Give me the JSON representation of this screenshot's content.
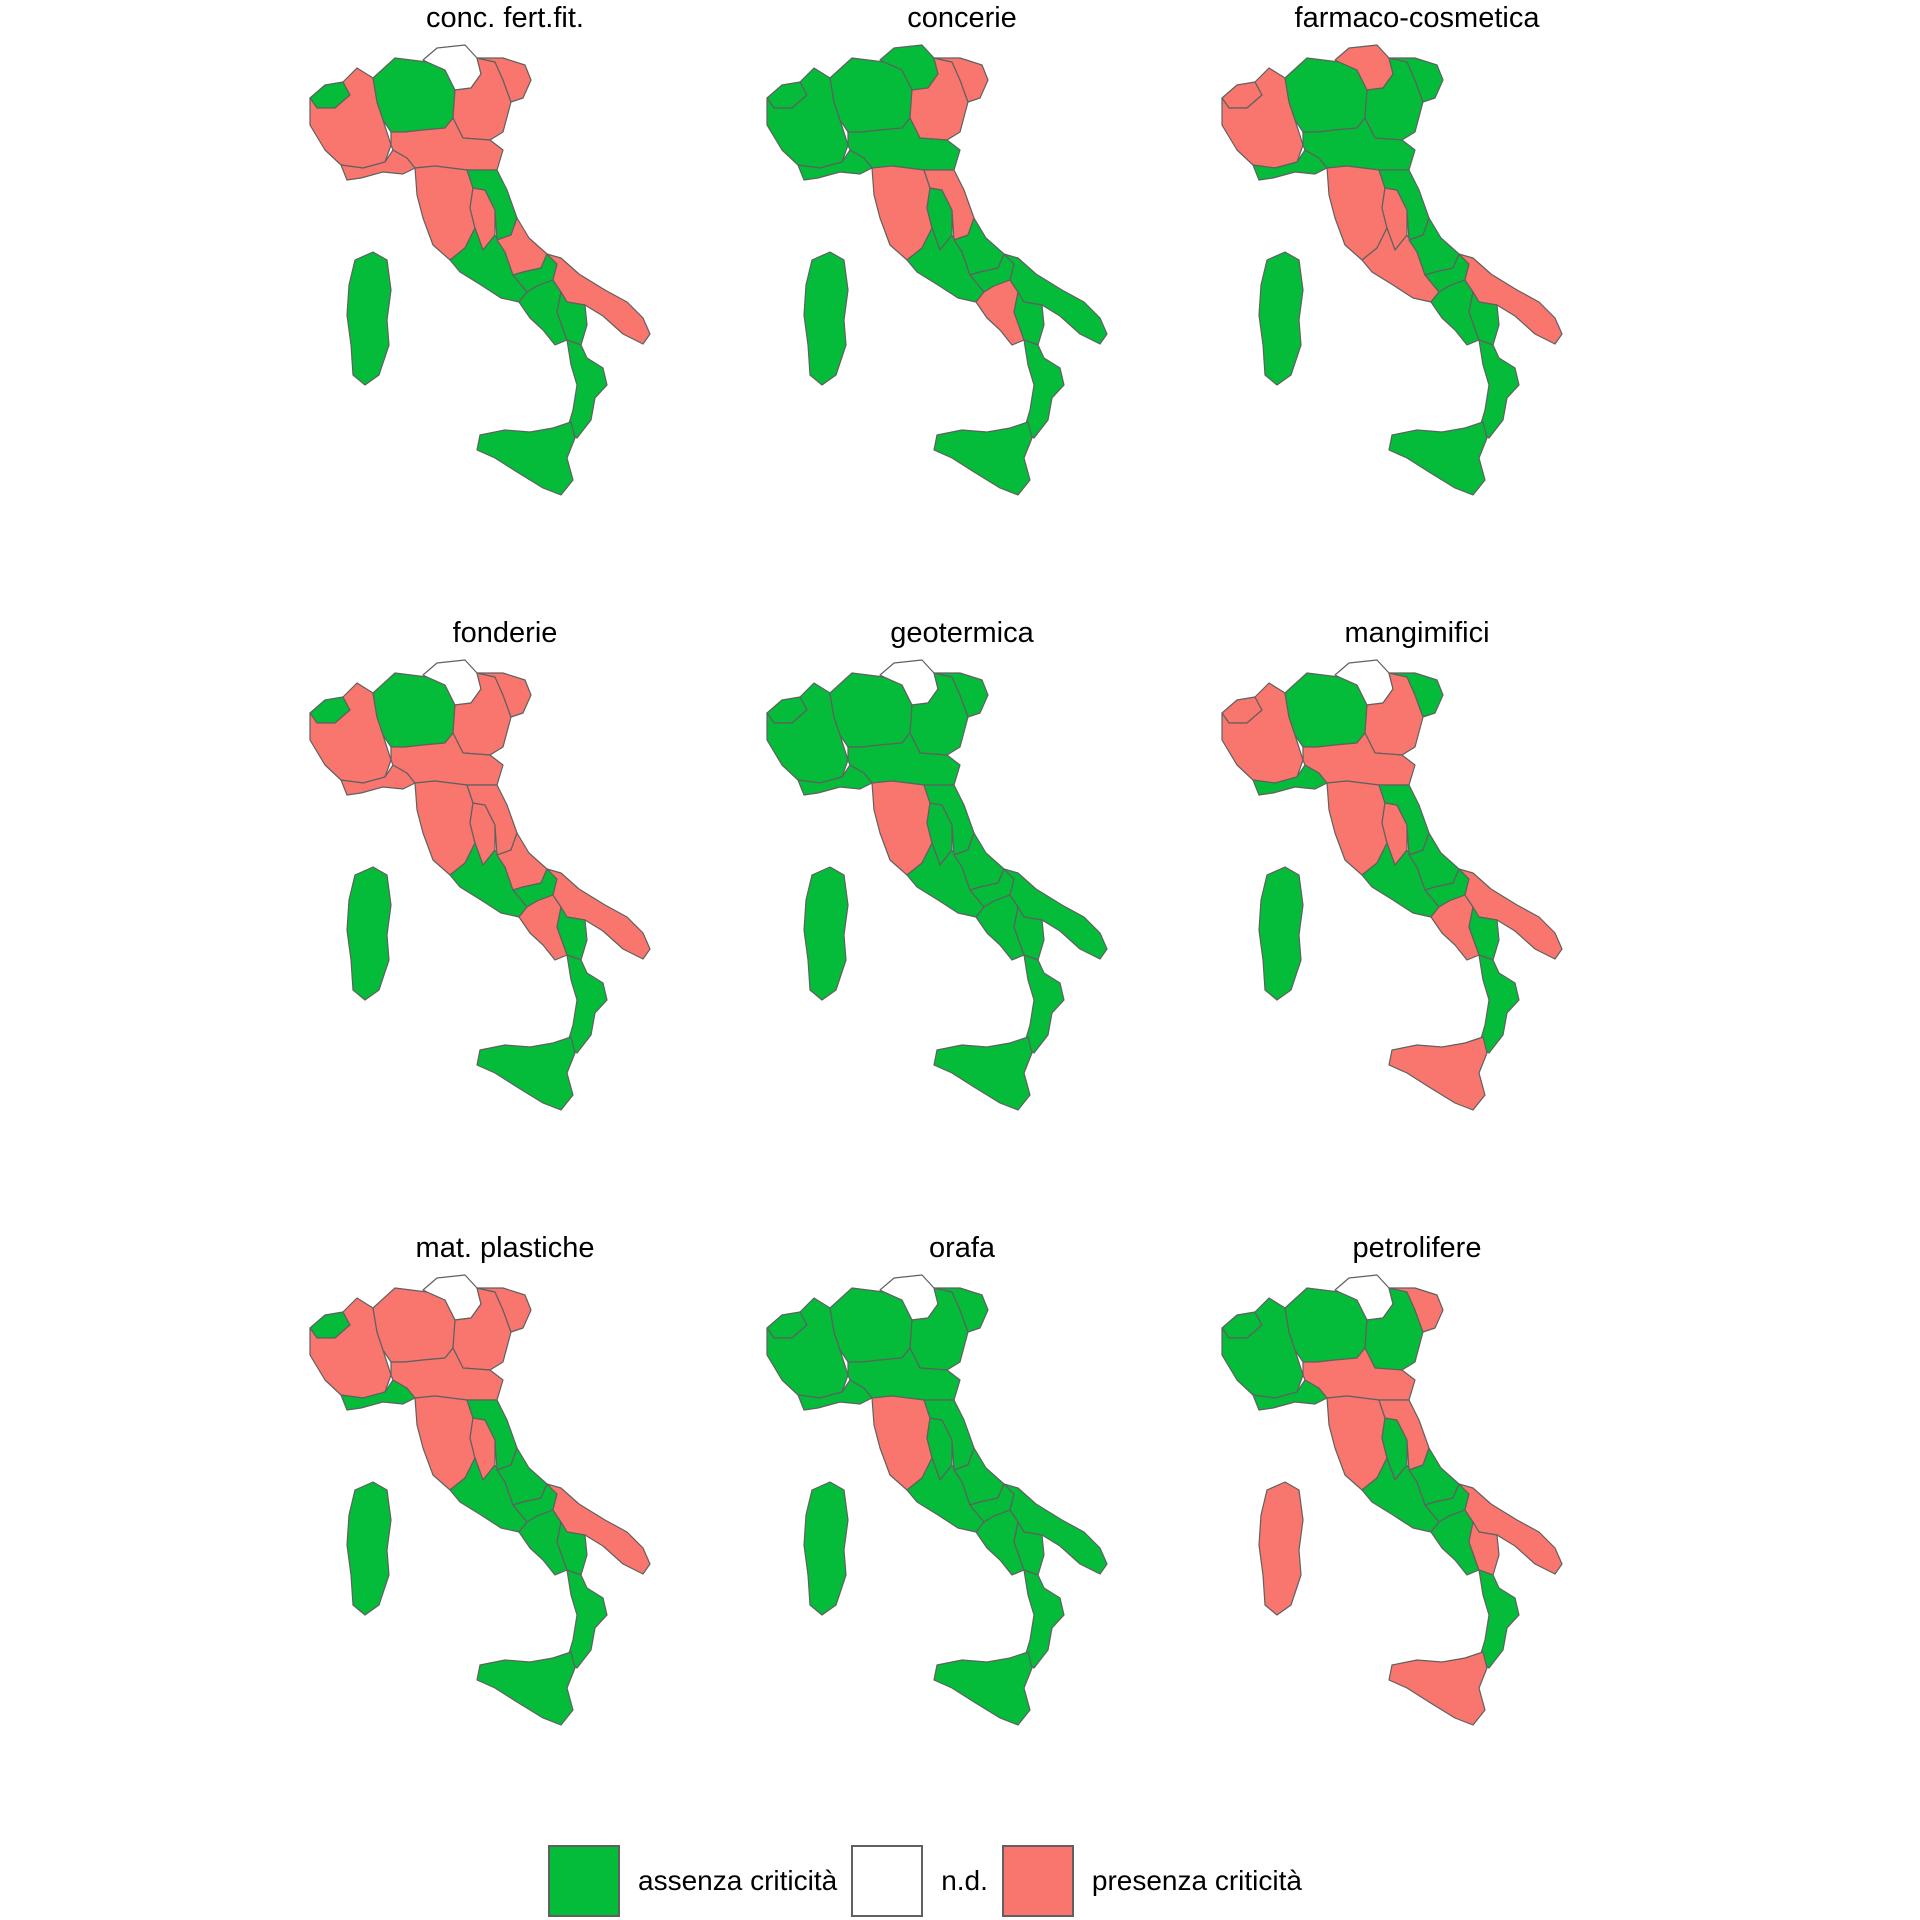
{
  "colors": {
    "assenza": "#04bb3a",
    "nd": "#ffffff",
    "presenza": "#f8766d",
    "border": "#606060"
  },
  "legend": [
    {
      "key": "assenza",
      "label": "assenza criticità"
    },
    {
      "key": "nd",
      "label": "n.d."
    },
    {
      "key": "presenza",
      "label": "presenza criticità"
    }
  ],
  "panels": [
    {
      "title": "conc. fert.fit.",
      "regions": {
        "Valle d'Aosta": "assenza",
        "Piemonte": "presenza",
        "Lombardia": "assenza",
        "Trentino-Alto Adige": "nd",
        "Veneto": "presenza",
        "Friuli-Venezia Giulia": "presenza",
        "Liguria": "presenza",
        "Emilia-Romagna": "presenza",
        "Toscana": "presenza",
        "Umbria": "presenza",
        "Marche": "assenza",
        "Lazio": "assenza",
        "Abruzzo": "presenza",
        "Molise": "assenza",
        "Campania": "assenza",
        "Puglia": "presenza",
        "Basilicata": "assenza",
        "Calabria": "assenza",
        "Sicilia": "assenza",
        "Sardegna": "assenza"
      }
    },
    {
      "title": "concerie",
      "regions": {
        "Valle d'Aosta": "assenza",
        "Piemonte": "assenza",
        "Lombardia": "assenza",
        "Trentino-Alto Adige": "assenza",
        "Veneto": "presenza",
        "Friuli-Venezia Giulia": "presenza",
        "Liguria": "assenza",
        "Emilia-Romagna": "assenza",
        "Toscana": "presenza",
        "Umbria": "assenza",
        "Marche": "presenza",
        "Lazio": "assenza",
        "Abruzzo": "assenza",
        "Molise": "assenza",
        "Campania": "presenza",
        "Puglia": "assenza",
        "Basilicata": "assenza",
        "Calabria": "assenza",
        "Sicilia": "assenza",
        "Sardegna": "assenza"
      }
    },
    {
      "title": "farmaco-cosmetica",
      "regions": {
        "Valle d'Aosta": "presenza",
        "Piemonte": "presenza",
        "Lombardia": "assenza",
        "Trentino-Alto Adige": "presenza",
        "Veneto": "assenza",
        "Friuli-Venezia Giulia": "assenza",
        "Liguria": "assenza",
        "Emilia-Romagna": "assenza",
        "Toscana": "presenza",
        "Umbria": "presenza",
        "Marche": "assenza",
        "Lazio": "presenza",
        "Abruzzo": "assenza",
        "Molise": "assenza",
        "Campania": "assenza",
        "Puglia": "presenza",
        "Basilicata": "assenza",
        "Calabria": "assenza",
        "Sicilia": "assenza",
        "Sardegna": "assenza"
      }
    },
    {
      "title": "fonderie",
      "regions": {
        "Valle d'Aosta": "assenza",
        "Piemonte": "presenza",
        "Lombardia": "assenza",
        "Trentino-Alto Adige": "nd",
        "Veneto": "presenza",
        "Friuli-Venezia Giulia": "presenza",
        "Liguria": "presenza",
        "Emilia-Romagna": "presenza",
        "Toscana": "presenza",
        "Umbria": "presenza",
        "Marche": "presenza",
        "Lazio": "assenza",
        "Abruzzo": "presenza",
        "Molise": "assenza",
        "Campania": "presenza",
        "Puglia": "presenza",
        "Basilicata": "assenza",
        "Calabria": "assenza",
        "Sicilia": "assenza",
        "Sardegna": "assenza"
      }
    },
    {
      "title": "geotermica",
      "regions": {
        "Valle d'Aosta": "assenza",
        "Piemonte": "assenza",
        "Lombardia": "assenza",
        "Trentino-Alto Adige": "nd",
        "Veneto": "assenza",
        "Friuli-Venezia Giulia": "assenza",
        "Liguria": "assenza",
        "Emilia-Romagna": "assenza",
        "Toscana": "presenza",
        "Umbria": "assenza",
        "Marche": "assenza",
        "Lazio": "assenza",
        "Abruzzo": "assenza",
        "Molise": "assenza",
        "Campania": "assenza",
        "Puglia": "assenza",
        "Basilicata": "assenza",
        "Calabria": "assenza",
        "Sicilia": "assenza",
        "Sardegna": "assenza"
      }
    },
    {
      "title": "mangimifici",
      "regions": {
        "Valle d'Aosta": "presenza",
        "Piemonte": "presenza",
        "Lombardia": "assenza",
        "Trentino-Alto Adige": "nd",
        "Veneto": "presenza",
        "Friuli-Venezia Giulia": "assenza",
        "Liguria": "assenza",
        "Emilia-Romagna": "presenza",
        "Toscana": "presenza",
        "Umbria": "presenza",
        "Marche": "assenza",
        "Lazio": "assenza",
        "Abruzzo": "assenza",
        "Molise": "assenza",
        "Campania": "presenza",
        "Puglia": "presenza",
        "Basilicata": "assenza",
        "Calabria": "assenza",
        "Sicilia": "presenza",
        "Sardegna": "assenza"
      }
    },
    {
      "title": "mat. plastiche",
      "regions": {
        "Valle d'Aosta": "assenza",
        "Piemonte": "presenza",
        "Lombardia": "presenza",
        "Trentino-Alto Adige": "nd",
        "Veneto": "presenza",
        "Friuli-Venezia Giulia": "presenza",
        "Liguria": "assenza",
        "Emilia-Romagna": "presenza",
        "Toscana": "presenza",
        "Umbria": "presenza",
        "Marche": "assenza",
        "Lazio": "assenza",
        "Abruzzo": "assenza",
        "Molise": "assenza",
        "Campania": "assenza",
        "Puglia": "presenza",
        "Basilicata": "assenza",
        "Calabria": "assenza",
        "Sicilia": "assenza",
        "Sardegna": "assenza"
      }
    },
    {
      "title": "orafa",
      "regions": {
        "Valle d'Aosta": "assenza",
        "Piemonte": "assenza",
        "Lombardia": "assenza",
        "Trentino-Alto Adige": "nd",
        "Veneto": "assenza",
        "Friuli-Venezia Giulia": "assenza",
        "Liguria": "assenza",
        "Emilia-Romagna": "assenza",
        "Toscana": "presenza",
        "Umbria": "assenza",
        "Marche": "assenza",
        "Lazio": "assenza",
        "Abruzzo": "assenza",
        "Molise": "assenza",
        "Campania": "assenza",
        "Puglia": "assenza",
        "Basilicata": "assenza",
        "Calabria": "assenza",
        "Sicilia": "assenza",
        "Sardegna": "assenza"
      }
    },
    {
      "title": "petrolifere",
      "regions": {
        "Valle d'Aosta": "assenza",
        "Piemonte": "assenza",
        "Lombardia": "assenza",
        "Trentino-Alto Adige": "nd",
        "Veneto": "assenza",
        "Friuli-Venezia Giulia": "presenza",
        "Liguria": "assenza",
        "Emilia-Romagna": "presenza",
        "Toscana": "presenza",
        "Umbria": "assenza",
        "Marche": "presenza",
        "Lazio": "assenza",
        "Abruzzo": "assenza",
        "Molise": "assenza",
        "Campania": "assenza",
        "Puglia": "presenza",
        "Basilicata": "presenza",
        "Calabria": "assenza",
        "Sicilia": "presenza",
        "Sardegna": "presenza"
      }
    }
  ]
}
